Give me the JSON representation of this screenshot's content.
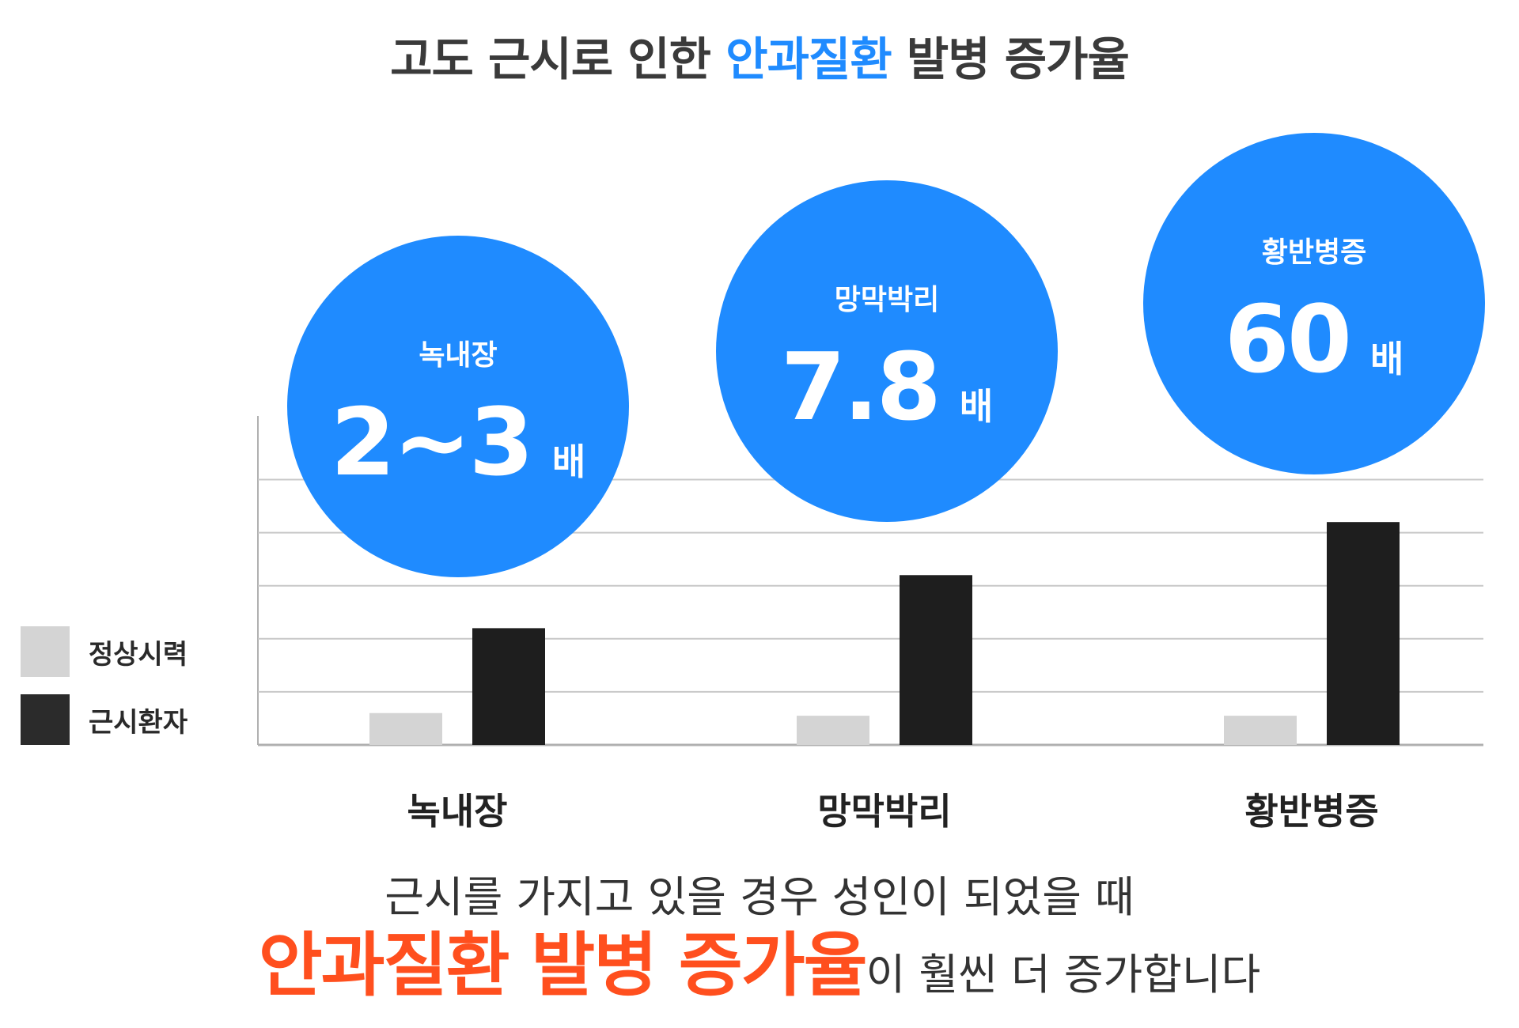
{
  "header": {
    "title_before": "고도 근시로 인한 ",
    "title_highlight": "안과질환",
    "title_after": " 발병 증가율"
  },
  "legend": [
    {
      "label": "정상시력",
      "color": "#d4d4d4"
    },
    {
      "label": "근시환자",
      "color": "#2b2b2b"
    }
  ],
  "colors": {
    "accent": "#1f8bff",
    "emphasis": "#ff4f1e",
    "normal_bar": "#d4d4d4",
    "myopia_bar": "#1e1e1e",
    "grid": "#c8c8c8"
  },
  "bubbles": [
    {
      "name": "녹내장",
      "value": "2~3",
      "unit": "배"
    },
    {
      "name": "망막박리",
      "value": "7.8",
      "unit": "배"
    },
    {
      "name": "황반병증",
      "value": "60",
      "unit": "배"
    }
  ],
  "chart_data": {
    "type": "bar",
    "categories": [
      "녹내장",
      "망막박리",
      "황반병증"
    ],
    "series": [
      {
        "name": "정상시력",
        "values": [
          0.6,
          0.55,
          0.55
        ]
      },
      {
        "name": "근시환자",
        "values": [
          2.2,
          3.2,
          4.2
        ]
      }
    ],
    "ylim": [
      0,
      6.2
    ],
    "gridlines": [
      1,
      2,
      3,
      4,
      5
    ],
    "grid": true
  },
  "caption": {
    "line1": "근시를 가지고 있을 경우 성인이 되었을 때",
    "line2_emphasis": "안과질환 발병 증가율",
    "line2_rest": "이 훨씬 더 증가합니다"
  }
}
